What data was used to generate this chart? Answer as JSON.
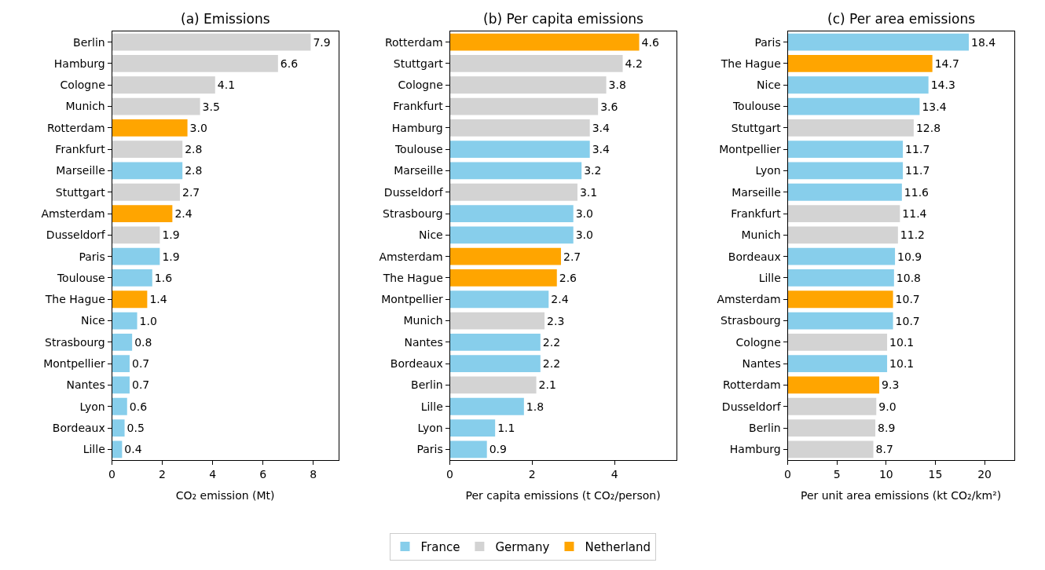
{
  "chart_data": [
    {
      "type": "bar",
      "orientation": "horizontal",
      "title": "(a) Emissions",
      "xlabel": "CO₂ emission (Mt)",
      "categories": [
        "Berlin",
        "Hamburg",
        "Cologne",
        "Munich",
        "Rotterdam",
        "Frankfurt",
        "Marseille",
        "Stuttgart",
        "Amsterdam",
        "Dusseldorf",
        "Paris",
        "Toulouse",
        "The Hague",
        "Nice",
        "Strasbourg",
        "Montpellier",
        "Nantes",
        "Lyon",
        "Bordeaux",
        "Lille"
      ],
      "series": [
        {
          "name": "France",
          "color": "#87ceeb",
          "values": [
            null,
            null,
            null,
            null,
            null,
            null,
            2.8,
            null,
            null,
            null,
            1.9,
            1.6,
            null,
            1.0,
            0.8,
            0.7,
            0.7,
            0.6,
            0.5,
            0.4
          ],
          "value_labels": [
            null,
            null,
            null,
            null,
            null,
            null,
            "2.8",
            null,
            null,
            null,
            "1.9",
            "1.6",
            null,
            "1.0",
            "0.8",
            "0.7",
            "0.7",
            "0.6",
            "0.5",
            "0.4"
          ]
        },
        {
          "name": "Germany",
          "color": "#d3d3d3",
          "values": [
            7.9,
            6.6,
            4.1,
            3.5,
            null,
            2.8,
            null,
            2.7,
            null,
            1.9,
            null,
            null,
            null,
            null,
            null,
            null,
            null,
            null,
            null,
            null
          ],
          "value_labels": [
            "7.9",
            "6.6",
            "4.1",
            "3.5",
            null,
            "2.8",
            null,
            "2.7",
            null,
            "1.9",
            null,
            null,
            null,
            null,
            null,
            null,
            null,
            null,
            null,
            null
          ]
        },
        {
          "name": "Netherland",
          "color": "#ffa500",
          "values": [
            null,
            null,
            null,
            null,
            3.0,
            null,
            null,
            null,
            2.4,
            null,
            null,
            null,
            1.4,
            null,
            null,
            null,
            null,
            null,
            null,
            null
          ],
          "value_labels": [
            null,
            null,
            null,
            null,
            "3.0",
            null,
            null,
            null,
            "2.4",
            null,
            null,
            null,
            "1.4",
            null,
            null,
            null,
            null,
            null,
            null,
            null
          ]
        }
      ],
      "xlim": [
        0,
        9
      ],
      "xticks": [
        0,
        2,
        4,
        6,
        8
      ],
      "legend": "bottom"
    },
    {
      "type": "bar",
      "orientation": "horizontal",
      "title": "(b) Per capita emissions",
      "xlabel": "Per capita emissions (t CO₂/person)",
      "categories": [
        "Rotterdam",
        "Stuttgart",
        "Cologne",
        "Frankfurt",
        "Hamburg",
        "Toulouse",
        "Marseille",
        "Dusseldorf",
        "Strasbourg",
        "Nice",
        "Amsterdam",
        "The Hague",
        "Montpellier",
        "Munich",
        "Nantes",
        "Bordeaux",
        "Berlin",
        "Lille",
        "Lyon",
        "Paris"
      ],
      "series": [
        {
          "name": "France",
          "color": "#87ceeb",
          "values": [
            null,
            null,
            null,
            null,
            null,
            3.4,
            3.2,
            null,
            3.0,
            3.0,
            null,
            null,
            2.4,
            null,
            2.2,
            2.2,
            null,
            1.8,
            1.1,
            0.9
          ],
          "value_labels": [
            null,
            null,
            null,
            null,
            null,
            "3.4",
            "3.2",
            null,
            "3.0",
            "3.0",
            null,
            null,
            "2.4",
            null,
            "2.2",
            "2.2",
            null,
            "1.8",
            "1.1",
            "0.9"
          ]
        },
        {
          "name": "Germany",
          "color": "#d3d3d3",
          "values": [
            null,
            4.2,
            3.8,
            3.6,
            3.4,
            null,
            null,
            3.1,
            null,
            null,
            null,
            null,
            null,
            2.3,
            null,
            null,
            2.1,
            null,
            null,
            null
          ],
          "value_labels": [
            null,
            "4.2",
            "3.8",
            "3.6",
            "3.4",
            null,
            null,
            "3.1",
            null,
            null,
            null,
            null,
            null,
            "2.3",
            null,
            null,
            "2.1",
            null,
            null,
            null
          ]
        },
        {
          "name": "Netherland",
          "color": "#ffa500",
          "values": [
            4.6,
            null,
            null,
            null,
            null,
            null,
            null,
            null,
            null,
            null,
            2.7,
            2.6,
            null,
            null,
            null,
            null,
            null,
            null,
            null,
            null
          ],
          "value_labels": [
            "4.6",
            null,
            null,
            null,
            null,
            null,
            null,
            null,
            null,
            null,
            "2.7",
            "2.6",
            null,
            null,
            null,
            null,
            null,
            null,
            null,
            null
          ]
        }
      ],
      "xlim": [
        0,
        5.5
      ],
      "xticks": [
        0,
        2,
        4
      ],
      "legend": "bottom"
    },
    {
      "type": "bar",
      "orientation": "horizontal",
      "title": "(c) Per area emissions",
      "xlabel": "Per unit area emissions (kt CO₂/km²)",
      "categories": [
        "Paris",
        "The Hague",
        "Nice",
        "Toulouse",
        "Stuttgart",
        "Montpellier",
        "Lyon",
        "Marseille",
        "Frankfurt",
        "Munich",
        "Bordeaux",
        "Lille",
        "Amsterdam",
        "Strasbourg",
        "Cologne",
        "Nantes",
        "Rotterdam",
        "Dusseldorf",
        "Berlin",
        "Hamburg"
      ],
      "series": [
        {
          "name": "France",
          "color": "#87ceeb",
          "values": [
            18.4,
            null,
            14.3,
            13.4,
            null,
            11.7,
            11.7,
            11.6,
            null,
            null,
            10.9,
            10.8,
            null,
            10.7,
            null,
            10.1,
            null,
            null,
            null,
            null
          ],
          "value_labels": [
            "18.4",
            null,
            "14.3",
            "13.4",
            null,
            "11.7",
            "11.7",
            "11.6",
            null,
            null,
            "10.9",
            "10.8",
            null,
            "10.7",
            null,
            "10.1",
            null,
            null,
            null,
            null
          ]
        },
        {
          "name": "Germany",
          "color": "#d3d3d3",
          "values": [
            null,
            null,
            null,
            null,
            12.8,
            null,
            null,
            null,
            11.4,
            11.2,
            null,
            null,
            null,
            null,
            10.1,
            null,
            null,
            9.0,
            8.9,
            8.7
          ],
          "value_labels": [
            null,
            null,
            null,
            null,
            "12.8",
            null,
            null,
            null,
            "11.4",
            "11.2",
            null,
            null,
            null,
            null,
            "10.1",
            null,
            null,
            "9.0",
            "8.9",
            "8.7"
          ]
        },
        {
          "name": "Netherland",
          "color": "#ffa500",
          "values": [
            null,
            14.7,
            null,
            null,
            null,
            null,
            null,
            null,
            null,
            null,
            null,
            null,
            10.7,
            null,
            null,
            null,
            9.3,
            null,
            null,
            null
          ],
          "value_labels": [
            null,
            "14.7",
            null,
            null,
            null,
            null,
            null,
            null,
            null,
            null,
            null,
            null,
            "10.7",
            null,
            null,
            null,
            "9.3",
            null,
            null,
            null
          ]
        }
      ],
      "xlim": [
        0,
        23
      ],
      "xticks": [
        0,
        5,
        10,
        15,
        20
      ],
      "legend": "bottom"
    }
  ]
}
